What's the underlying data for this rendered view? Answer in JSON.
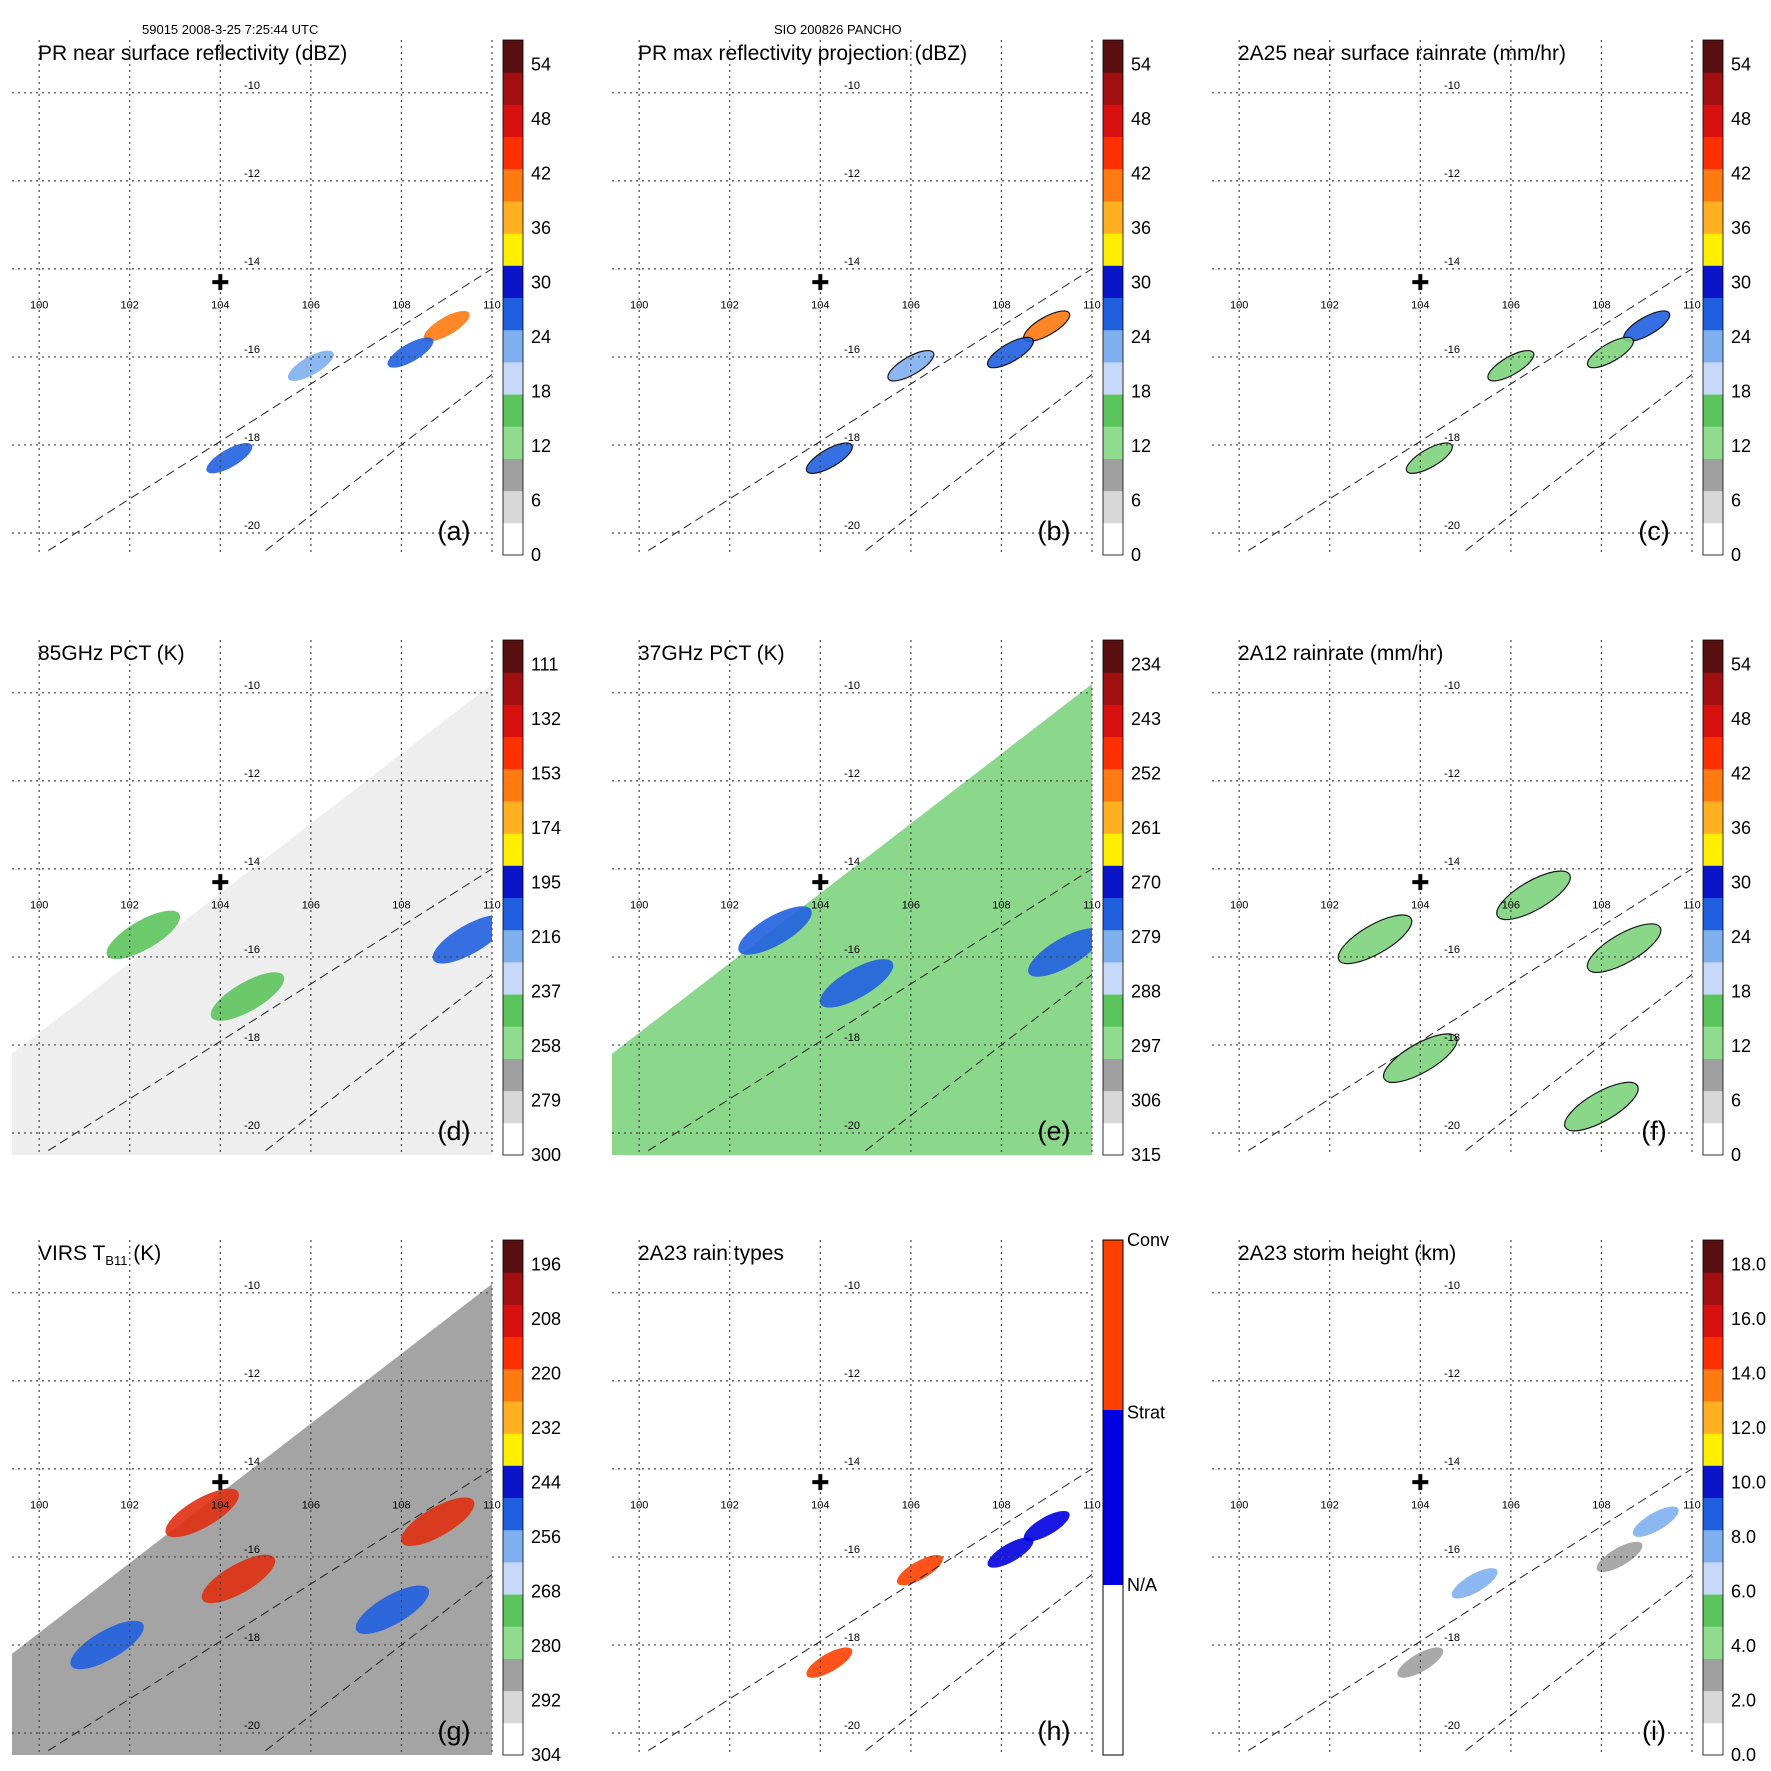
{
  "header": {
    "left": "59015 2008-3-25 7:25:44 UTC",
    "center": "SIO 200826 PANCHO"
  },
  "map": {
    "lon_ticks": [
      "100",
      "102",
      "104",
      "106",
      "108",
      "110"
    ],
    "lat_ticks": [
      "-10",
      "-12",
      "-14",
      "-16",
      "-18",
      "-20"
    ]
  },
  "chart_data": [
    {
      "id": "a",
      "type": "heatmap",
      "title": "PR near surface reflectivity (dBZ)",
      "panel_label": "(a)",
      "colorbar_ticks": [
        "54",
        "48",
        "42",
        "36",
        "30",
        "24",
        "18",
        "12",
        "6",
        "0"
      ],
      "colorbar_range": [
        0,
        60
      ],
      "swath": "narrow",
      "rain_cells": [
        {
          "lon": 109.0,
          "lat": -15.3,
          "level": "high"
        },
        {
          "lon": 108.2,
          "lat": -15.9,
          "level": "mid"
        },
        {
          "lon": 106.0,
          "lat": -16.2,
          "level": "low"
        },
        {
          "lon": 104.2,
          "lat": -18.3,
          "level": "mid"
        }
      ]
    },
    {
      "id": "b",
      "type": "heatmap",
      "title": "PR max reflectivity projection (dBZ)",
      "panel_label": "(b)",
      "colorbar_ticks": [
        "54",
        "48",
        "42",
        "36",
        "30",
        "24",
        "18",
        "12",
        "6",
        "0"
      ],
      "colorbar_range": [
        0,
        60
      ],
      "swath": "narrow",
      "rain_cells": [
        {
          "lon": 109.0,
          "lat": -15.3,
          "level": "high"
        },
        {
          "lon": 108.2,
          "lat": -15.9,
          "level": "mid"
        },
        {
          "lon": 106.0,
          "lat": -16.2,
          "level": "low"
        },
        {
          "lon": 104.2,
          "lat": -18.3,
          "level": "mid"
        }
      ]
    },
    {
      "id": "c",
      "type": "heatmap",
      "title": "2A25 near surface rainrate (mm/hr)",
      "panel_label": "(c)",
      "colorbar_ticks": [
        "54",
        "48",
        "42",
        "36",
        "30",
        "24",
        "18",
        "12",
        "6",
        "0"
      ],
      "colorbar_range": [
        0,
        60
      ],
      "swath": "narrow",
      "rain_cells": [
        {
          "lon": 109.0,
          "lat": -15.3,
          "level": "mid"
        },
        {
          "lon": 108.2,
          "lat": -15.9,
          "level": "low"
        },
        {
          "lon": 106.0,
          "lat": -16.2,
          "level": "low"
        },
        {
          "lon": 104.2,
          "lat": -18.3,
          "level": "low"
        }
      ]
    },
    {
      "id": "d",
      "type": "heatmap",
      "title": "85GHz PCT (K)",
      "panel_label": "(d)",
      "colorbar_ticks": [
        "111",
        "132",
        "153",
        "174",
        "195",
        "216",
        "237",
        "258",
        "279",
        "300"
      ],
      "colorbar_range": [
        90,
        300
      ],
      "swath": "wide",
      "rain_cells": [
        {
          "lon": 102.3,
          "lat": -15.5,
          "level": "low"
        },
        {
          "lon": 104.6,
          "lat": -16.9,
          "level": "low"
        },
        {
          "lon": 109.5,
          "lat": -15.6,
          "level": "mid"
        }
      ]
    },
    {
      "id": "e",
      "type": "heatmap",
      "title": "37GHz PCT (K)",
      "panel_label": "(e)",
      "colorbar_ticks": [
        "234",
        "243",
        "252",
        "261",
        "270",
        "279",
        "288",
        "297",
        "306",
        "315"
      ],
      "colorbar_range": [
        225,
        315
      ],
      "swath": "wide",
      "rain_cells": [
        {
          "lon": 103.0,
          "lat": -15.4,
          "level": "mid"
        },
        {
          "lon": 104.8,
          "lat": -16.6,
          "level": "mid"
        },
        {
          "lon": 109.4,
          "lat": -15.9,
          "level": "mid"
        }
      ]
    },
    {
      "id": "f",
      "type": "heatmap",
      "title": "2A12 rainrate (mm/hr)",
      "panel_label": "(f)",
      "colorbar_ticks": [
        "54",
        "48",
        "42",
        "36",
        "30",
        "24",
        "18",
        "12",
        "6",
        "0"
      ],
      "colorbar_range": [
        0,
        60
      ],
      "swath": "wide",
      "rain_cells": [
        {
          "lon": 103.0,
          "lat": -15.6,
          "level": "low"
        },
        {
          "lon": 106.5,
          "lat": -14.6,
          "level": "low"
        },
        {
          "lon": 108.5,
          "lat": -15.8,
          "level": "low"
        },
        {
          "lon": 104.0,
          "lat": -18.3,
          "level": "low"
        },
        {
          "lon": 108.0,
          "lat": -19.4,
          "level": "low"
        }
      ]
    },
    {
      "id": "g",
      "type": "heatmap",
      "title": "VIRS T",
      "title_sub": "B11",
      "title_unit": " (K)",
      "panel_label": "(g)",
      "colorbar_ticks": [
        "196",
        "208",
        "220",
        "232",
        "244",
        "256",
        "268",
        "280",
        "292",
        "304"
      ],
      "colorbar_range": [
        184,
        304
      ],
      "swath": "wide",
      "rain_cells": [
        {
          "lon": 103.6,
          "lat": -15.0,
          "level": "cold"
        },
        {
          "lon": 104.4,
          "lat": -16.5,
          "level": "cold"
        },
        {
          "lon": 108.8,
          "lat": -15.2,
          "level": "cold"
        },
        {
          "lon": 107.8,
          "lat": -17.2,
          "level": "warm"
        },
        {
          "lon": 101.5,
          "lat": -18.0,
          "level": "warm"
        }
      ]
    },
    {
      "id": "h",
      "type": "heatmap",
      "title": "2A23 rain types",
      "panel_label": "(h)",
      "colorbar_ticks": [
        "Conv",
        "Strat",
        "N/A"
      ],
      "colorbar_categorical": true,
      "swath": "narrow",
      "rain_cells": [
        {
          "lon": 109.0,
          "lat": -15.3,
          "level": "strat"
        },
        {
          "lon": 108.2,
          "lat": -15.9,
          "level": "strat"
        },
        {
          "lon": 106.2,
          "lat": -16.3,
          "level": "conv"
        },
        {
          "lon": 104.2,
          "lat": -18.4,
          "level": "conv"
        }
      ]
    },
    {
      "id": "i",
      "type": "heatmap",
      "title": "2A23 storm height (km)",
      "panel_label": "(i)",
      "colorbar_ticks": [
        "18.0",
        "16.0",
        "14.0",
        "12.0",
        "10.0",
        "8.0",
        "6.0",
        "4.0",
        "2.0",
        "0.0"
      ],
      "colorbar_range": [
        0,
        20
      ],
      "swath": "narrow",
      "rain_cells": [
        {
          "lon": 109.2,
          "lat": -15.2,
          "level": "mid"
        },
        {
          "lon": 108.4,
          "lat": -16.0,
          "level": "low"
        },
        {
          "lon": 105.2,
          "lat": -16.6,
          "level": "mid"
        },
        {
          "lon": 104.0,
          "lat": -18.4,
          "level": "low"
        }
      ]
    }
  ],
  "colors": {
    "palette_standard": [
      "#ffffff",
      "#d8d8d8",
      "#a0a0a0",
      "#8fdc8f",
      "#5cc45c",
      "#c8d8f8",
      "#80b0f0",
      "#2060e0",
      "#0a14c8",
      "#ffee00",
      "#ffb020",
      "#ff7a10",
      "#ff3000",
      "#d81010",
      "#a01010",
      "#5a1010"
    ],
    "palette_rain_types": [
      "#ffffff",
      "#0000e0",
      "#ff4000"
    ]
  }
}
